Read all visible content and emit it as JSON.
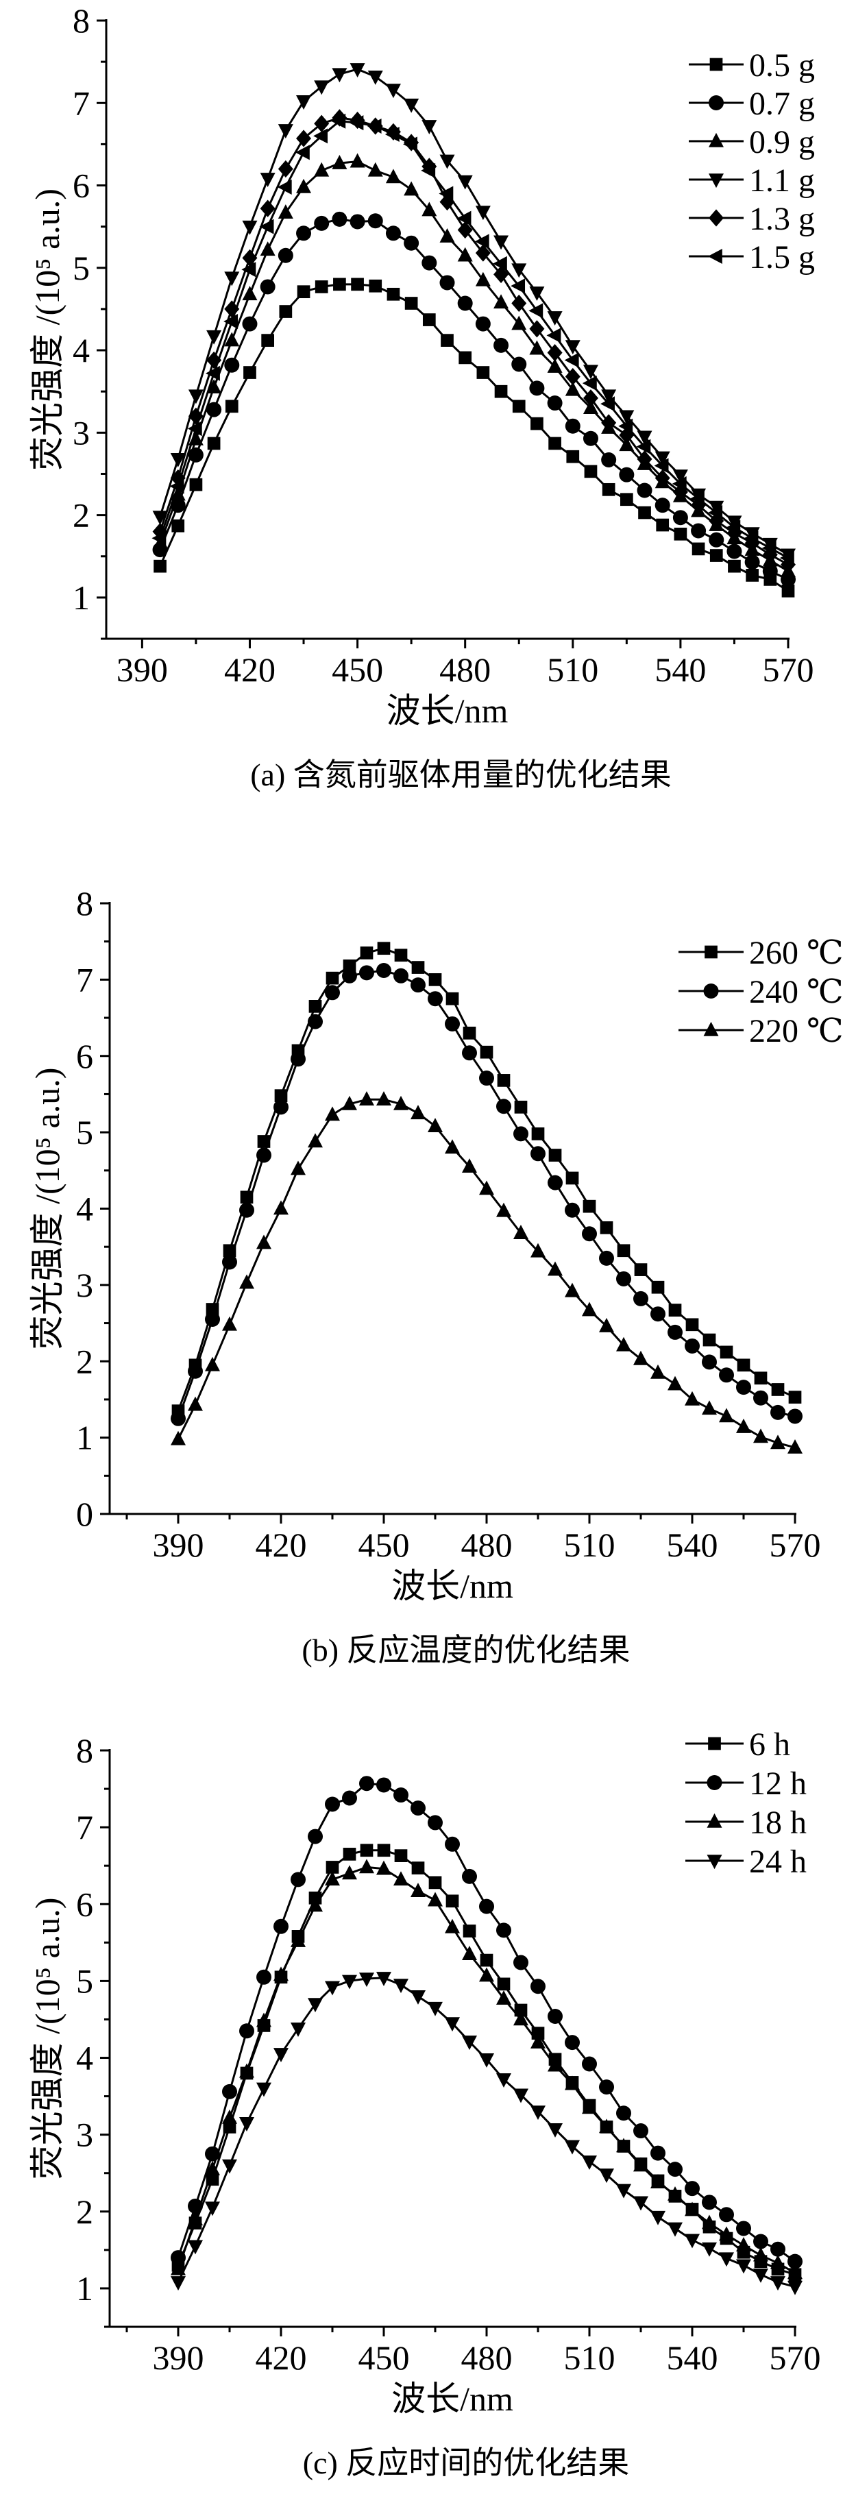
{
  "chart_data": [
    {
      "type": "line",
      "title": "(a) 含氮前驱体用量的优化结果",
      "xlabel": "波长/nm",
      "ylabel": "荧光强度 /(10⁵ a.u.)",
      "xlim": [
        380,
        570
      ],
      "ylim": [
        0.5,
        8
      ],
      "xticks": [
        390,
        420,
        450,
        480,
        510,
        540,
        570
      ],
      "yticks": [
        1,
        2,
        3,
        4,
        5,
        6,
        7,
        8
      ],
      "grid": false,
      "legend": "top-right",
      "x": [
        395,
        400,
        405,
        410,
        415,
        420,
        425,
        430,
        435,
        440,
        445,
        450,
        455,
        460,
        465,
        470,
        475,
        480,
        485,
        490,
        495,
        500,
        505,
        510,
        515,
        520,
        525,
        530,
        535,
        540,
        545,
        550,
        555,
        560,
        565,
        570
      ],
      "series": [
        {
          "name": "0.5 g",
          "marker": "square",
          "values": [
            1.38,
            1.87,
            2.37,
            2.87,
            3.32,
            3.73,
            4.12,
            4.47,
            4.71,
            4.77,
            4.8,
            4.8,
            4.78,
            4.68,
            4.57,
            4.37,
            4.12,
            3.91,
            3.73,
            3.5,
            3.32,
            3.11,
            2.87,
            2.71,
            2.53,
            2.31,
            2.19,
            2.03,
            1.88,
            1.77,
            1.59,
            1.51,
            1.38,
            1.27,
            1.22,
            1.08
          ]
        },
        {
          "name": "0.7 g",
          "marker": "circle",
          "values": [
            1.58,
            2.12,
            2.73,
            3.28,
            3.82,
            4.32,
            4.77,
            5.15,
            5.42,
            5.54,
            5.59,
            5.56,
            5.57,
            5.42,
            5.3,
            5.06,
            4.82,
            4.57,
            4.32,
            4.06,
            3.83,
            3.54,
            3.36,
            3.08,
            2.93,
            2.67,
            2.49,
            2.3,
            2.12,
            1.97,
            1.81,
            1.7,
            1.56,
            1.43,
            1.32,
            1.22
          ]
        },
        {
          "name": "0.9 g",
          "marker": "triangle-up",
          "values": [
            1.65,
            2.25,
            2.92,
            3.55,
            4.12,
            4.68,
            5.22,
            5.67,
            5.98,
            6.18,
            6.27,
            6.29,
            6.18,
            6.1,
            5.95,
            5.7,
            5.38,
            5.15,
            4.85,
            4.58,
            4.32,
            4.02,
            3.8,
            3.52,
            3.3,
            3.06,
            2.85,
            2.62,
            2.4,
            2.23,
            2.05,
            1.88,
            1.72,
            1.58,
            1.45,
            1.32
          ]
        },
        {
          "name": "1.1 g",
          "marker": "triangle-down",
          "values": [
            1.98,
            2.68,
            3.45,
            4.17,
            4.88,
            5.5,
            6.08,
            6.67,
            7.02,
            7.2,
            7.35,
            7.41,
            7.32,
            7.16,
            6.98,
            6.72,
            6.3,
            6.05,
            5.68,
            5.32,
            4.98,
            4.7,
            4.4,
            4.05,
            3.75,
            3.45,
            3.2,
            2.95,
            2.7,
            2.48,
            2.25,
            2.1,
            1.92,
            1.78,
            1.65,
            1.52
          ]
        },
        {
          "name": "1.3 g",
          "marker": "diamond",
          "values": [
            1.8,
            2.45,
            3.2,
            3.88,
            4.5,
            5.12,
            5.72,
            6.2,
            6.57,
            6.75,
            6.82,
            6.79,
            6.72,
            6.65,
            6.52,
            6.23,
            5.8,
            5.46,
            5.18,
            4.92,
            4.57,
            4.26,
            3.97,
            3.68,
            3.42,
            3.12,
            2.97,
            2.68,
            2.45,
            2.28,
            2.12,
            1.93,
            1.78,
            1.66,
            1.52,
            1.4
          ]
        },
        {
          "name": "1.5 g",
          "marker": "triangle-left",
          "values": [
            1.72,
            2.35,
            3.05,
            3.72,
            4.35,
            4.98,
            5.5,
            5.98,
            6.4,
            6.6,
            6.78,
            6.76,
            6.72,
            6.62,
            6.5,
            6.18,
            5.9,
            5.6,
            5.32,
            5.05,
            4.78,
            4.48,
            4.18,
            3.88,
            3.6,
            3.35,
            3.08,
            2.83,
            2.6,
            2.38,
            2.2,
            2.03,
            1.85,
            1.72,
            1.6,
            1.48
          ]
        }
      ]
    },
    {
      "type": "line",
      "title": "(b) 反应温度的优化结果",
      "xlabel": "波长/nm",
      "ylabel": "荧光强度 /(10⁵ a.u.)",
      "xlim": [
        370,
        570
      ],
      "ylim": [
        0,
        8
      ],
      "xticks": [
        390,
        420,
        450,
        480,
        510,
        540,
        570
      ],
      "yticks": [
        0,
        1,
        2,
        3,
        4,
        5,
        6,
        7,
        8
      ],
      "grid": false,
      "legend": "top-right",
      "x": [
        390,
        395,
        400,
        405,
        410,
        415,
        420,
        425,
        430,
        435,
        440,
        445,
        450,
        455,
        460,
        465,
        470,
        475,
        480,
        485,
        490,
        495,
        500,
        505,
        510,
        515,
        520,
        525,
        530,
        535,
        540,
        545,
        550,
        555,
        560,
        565,
        570
      ],
      "series": [
        {
          "name": "260 ℃",
          "marker": "square",
          "values": [
            1.35,
            1.95,
            2.68,
            3.45,
            4.15,
            4.88,
            5.48,
            6.07,
            6.65,
            7.02,
            7.18,
            7.35,
            7.41,
            7.32,
            7.16,
            7.0,
            6.75,
            6.3,
            6.05,
            5.68,
            5.33,
            4.98,
            4.7,
            4.4,
            4.03,
            3.75,
            3.45,
            3.2,
            2.97,
            2.67,
            2.48,
            2.28,
            2.12,
            1.95,
            1.78,
            1.63,
            1.53
          ]
        },
        {
          "name": "240 ℃",
          "marker": "circle",
          "values": [
            1.25,
            1.87,
            2.55,
            3.3,
            3.98,
            4.7,
            5.33,
            5.96,
            6.45,
            6.83,
            7.05,
            7.09,
            7.12,
            7.05,
            6.93,
            6.75,
            6.42,
            6.04,
            5.71,
            5.34,
            4.98,
            4.72,
            4.34,
            3.98,
            3.67,
            3.35,
            3.08,
            2.82,
            2.62,
            2.38,
            2.2,
            1.99,
            1.82,
            1.66,
            1.52,
            1.33,
            1.28
          ]
        },
        {
          "name": "220 ℃",
          "marker": "triangle-up",
          "values": [
            0.98,
            1.43,
            1.95,
            2.48,
            3.03,
            3.55,
            4.0,
            4.52,
            4.88,
            5.23,
            5.37,
            5.43,
            5.43,
            5.37,
            5.25,
            5.08,
            4.8,
            4.55,
            4.26,
            3.97,
            3.68,
            3.44,
            3.2,
            2.92,
            2.67,
            2.46,
            2.21,
            2.03,
            1.85,
            1.7,
            1.5,
            1.38,
            1.28,
            1.14,
            1.01,
            0.93,
            0.87
          ]
        }
      ]
    },
    {
      "type": "line",
      "title": "(c) 反应时间的优化结果",
      "xlabel": "波长/nm",
      "ylabel": "荧光强度 /(10⁵ a.u.)",
      "xlim": [
        370,
        570
      ],
      "ylim": [
        0.5,
        8
      ],
      "xticks": [
        390,
        420,
        450,
        480,
        510,
        540,
        570
      ],
      "yticks": [
        1,
        2,
        3,
        4,
        5,
        6,
        7,
        8
      ],
      "grid": false,
      "legend": "top-right",
      "x": [
        390,
        395,
        400,
        405,
        410,
        415,
        420,
        425,
        430,
        435,
        440,
        445,
        450,
        455,
        460,
        465,
        470,
        475,
        480,
        485,
        490,
        495,
        500,
        505,
        510,
        515,
        520,
        525,
        530,
        535,
        540,
        545,
        550,
        555,
        560,
        565,
        570
      ],
      "series": [
        {
          "name": "6 h",
          "marker": "square",
          "values": [
            1.3,
            1.85,
            2.42,
            3.1,
            3.8,
            4.42,
            5.05,
            5.58,
            6.08,
            6.48,
            6.65,
            6.7,
            6.7,
            6.63,
            6.47,
            6.28,
            6.04,
            5.65,
            5.27,
            4.96,
            4.62,
            4.32,
            3.98,
            3.68,
            3.38,
            3.1,
            2.85,
            2.62,
            2.4,
            2.2,
            2.03,
            1.8,
            1.65,
            1.47,
            1.35,
            1.25,
            1.18
          ]
        },
        {
          "name": "12 h",
          "marker": "circle",
          "values": [
            1.4,
            2.07,
            2.75,
            3.56,
            4.35,
            5.05,
            5.71,
            6.32,
            6.88,
            7.3,
            7.38,
            7.57,
            7.55,
            7.42,
            7.25,
            7.06,
            6.78,
            6.36,
            5.97,
            5.66,
            5.24,
            4.93,
            4.54,
            4.2,
            3.92,
            3.62,
            3.28,
            3.05,
            2.76,
            2.55,
            2.3,
            2.12,
            1.96,
            1.78,
            1.61,
            1.51,
            1.35
          ]
        },
        {
          "name": "18 h",
          "marker": "triangle-up",
          "values": [
            1.25,
            1.9,
            2.55,
            3.22,
            3.82,
            4.48,
            5.08,
            5.52,
            5.98,
            6.32,
            6.4,
            6.48,
            6.46,
            6.32,
            6.17,
            6.05,
            5.7,
            5.35,
            5.07,
            4.77,
            4.5,
            4.2,
            3.9,
            3.66,
            3.35,
            3.1,
            2.85,
            2.6,
            2.38,
            2.22,
            2.02,
            1.85,
            1.7,
            1.56,
            1.43,
            1.33,
            1.2
          ]
        },
        {
          "name": "24 h",
          "marker": "triangle-down",
          "values": [
            1.08,
            1.55,
            2.05,
            2.6,
            3.15,
            3.6,
            4.05,
            4.38,
            4.7,
            4.92,
            5.0,
            5.03,
            5.04,
            4.95,
            4.8,
            4.65,
            4.45,
            4.21,
            3.98,
            3.72,
            3.52,
            3.3,
            3.07,
            2.85,
            2.65,
            2.48,
            2.28,
            2.12,
            1.93,
            1.78,
            1.63,
            1.52,
            1.39,
            1.3,
            1.18,
            1.08,
            1.02
          ]
        }
      ]
    }
  ]
}
